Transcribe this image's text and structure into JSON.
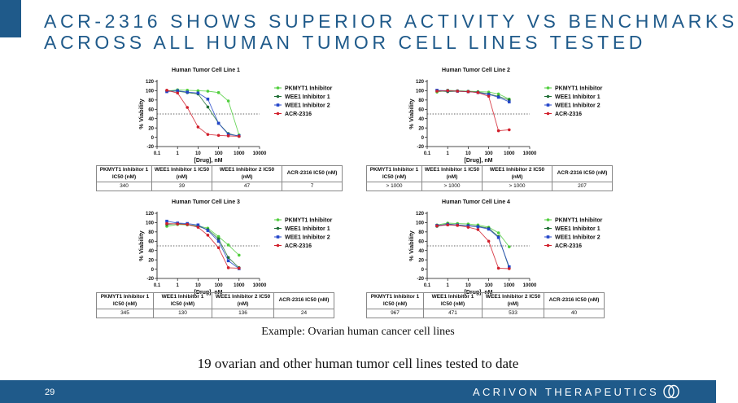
{
  "title_lines": [
    "ACR-2316 SHOWS SUPERIOR ACTIVITY VS BENCHMARKS",
    "ACROSS ALL HUMAN TUMOR CELL LINES TESTED"
  ],
  "example_caption": "Example: Ovarian human cancer cell lines",
  "footnote": "19 ovarian and other human tumor cell lines tested to date",
  "footer": {
    "page_number": "29",
    "brand": "ACRIVON THERAPEUTICS",
    "logo_icon": "interlocking-rings-logo-icon"
  },
  "colors": {
    "accent": "#1f5a8a",
    "PKMYT1 Inhibitor": "#4fce3c",
    "WEE1 Inhibitor 1": "#1f6e35",
    "WEE1 Inhibitor 2": "#2346c9",
    "ACR-2316": "#d11f2b",
    "reference_line": "#333333"
  },
  "chart_data": [
    {
      "type": "scatter",
      "title": "Human Tumor Cell Line 1",
      "xlabel": "[Drug], nM",
      "ylabel": "% Viability",
      "x_scale": "log",
      "x_ticks": [
        "0.1",
        "1",
        "10",
        "100",
        "1000",
        "10000"
      ],
      "y_ticks": [
        "-20",
        "0",
        "20",
        "40",
        "60",
        "80",
        "100",
        "120"
      ],
      "ylim": [
        -20,
        120
      ],
      "reference_line_y": 50,
      "legend_position": "right",
      "grid": false,
      "series": [
        {
          "name": "PKMYT1 Inhibitor",
          "x": [
            0.3,
            1,
            3,
            10,
            30,
            100,
            300,
            1000
          ],
          "y": [
            99,
            102,
            101,
            100,
            99,
            96,
            78,
            5
          ],
          "ic50": 340
        },
        {
          "name": "WEE1 Inhibitor 1",
          "x": [
            0.3,
            1,
            3,
            10,
            30,
            100,
            300,
            1000
          ],
          "y": [
            100,
            99,
            96,
            93,
            65,
            30,
            8,
            2
          ],
          "ic50": 39
        },
        {
          "name": "WEE1 Inhibitor 2",
          "x": [
            0.3,
            1,
            3,
            10,
            30,
            100,
            300,
            1000
          ],
          "y": [
            98,
            100,
            97,
            95,
            82,
            30,
            6,
            3
          ],
          "ic50": 47
        },
        {
          "name": "ACR-2316",
          "x": [
            0.3,
            1,
            3,
            10,
            30,
            100,
            300,
            1000
          ],
          "y": [
            101,
            95,
            64,
            22,
            6,
            4,
            3,
            2
          ],
          "ic50": 7
        }
      ],
      "table": {
        "headers": [
          "PKMYT1 Inhibitor 1 IC50 (nM)",
          "WEE1 Inhibitor 1 IC50 (nM)",
          "WEE1 Inhibitor 2 IC50 (nM)",
          "ACR-2316 IC50 (nM)"
        ],
        "values": [
          "340",
          "39",
          "47",
          "7"
        ]
      }
    },
    {
      "type": "scatter",
      "title": "Human Tumor Cell Line 2",
      "xlabel": "[Drug], nM",
      "ylabel": "% Viability",
      "x_scale": "log",
      "x_ticks": [
        "0.1",
        "1",
        "10",
        "100",
        "1000",
        "10000"
      ],
      "y_ticks": [
        "-20",
        "0",
        "20",
        "40",
        "60",
        "80",
        "100",
        "120"
      ],
      "ylim": [
        -20,
        120
      ],
      "reference_line_y": 50,
      "legend_position": "right",
      "grid": false,
      "series": [
        {
          "name": "PKMYT1 Inhibitor",
          "x": [
            0.3,
            1,
            3,
            10,
            30,
            100,
            300,
            1000
          ],
          "y": [
            97,
            101,
            100,
            99,
            98,
            97,
            93,
            82
          ],
          "ic50": "> 1000"
        },
        {
          "name": "WEE1 Inhibitor 1",
          "x": [
            0.3,
            1,
            3,
            10,
            30,
            100,
            300,
            1000
          ],
          "y": [
            100,
            98,
            99,
            98,
            97,
            93,
            88,
            80
          ],
          "ic50": "> 1000"
        },
        {
          "name": "WEE1 Inhibitor 2",
          "x": [
            0.3,
            1,
            3,
            10,
            30,
            100,
            300,
            1000
          ],
          "y": [
            101,
            100,
            99,
            98,
            96,
            92,
            86,
            76
          ],
          "ic50": "> 1000"
        },
        {
          "name": "ACR-2316",
          "x": [
            0.3,
            1,
            3,
            10,
            30,
            100,
            300,
            1000
          ],
          "y": [
            99,
            100,
            99,
            98,
            96,
            88,
            14,
            16
          ],
          "ic50": 207
        }
      ],
      "table": {
        "headers": [
          "PKMYT1 Inhibitor 1 IC50 (nM)",
          "WEE1 Inhibitor 1 IC50 (nM)",
          "WEE1 Inhibitor 2 IC50 (nM)",
          "ACR-2316 IC50 (nM)"
        ],
        "values": [
          "> 1000",
          "> 1000",
          "> 1000",
          "207"
        ]
      }
    },
    {
      "type": "scatter",
      "title": "Human Tumor Cell Line 3",
      "xlabel": "[Drug], nM",
      "ylabel": "% Viability",
      "x_scale": "log",
      "x_ticks": [
        "0.1",
        "1",
        "10",
        "100",
        "1000",
        "10000"
      ],
      "y_ticks": [
        "-20",
        "0",
        "20",
        "40",
        "60",
        "80",
        "100",
        "120"
      ],
      "ylim": [
        -20,
        120
      ],
      "reference_line_y": 50,
      "legend_position": "right",
      "grid": false,
      "series": [
        {
          "name": "PKMYT1 Inhibitor",
          "x": [
            0.3,
            1,
            3,
            10,
            30,
            100,
            300,
            1000
          ],
          "y": [
            92,
            96,
            95,
            93,
            88,
            70,
            52,
            30
          ],
          "ic50": 345
        },
        {
          "name": "WEE1 Inhibitor 1",
          "x": [
            0.3,
            1,
            3,
            10,
            30,
            100,
            300,
            1000
          ],
          "y": [
            96,
            98,
            96,
            92,
            85,
            65,
            25,
            3
          ],
          "ic50": 130
        },
        {
          "name": "WEE1 Inhibitor 2",
          "x": [
            0.3,
            1,
            3,
            10,
            30,
            100,
            300,
            1000
          ],
          "y": [
            103,
            99,
            98,
            95,
            83,
            60,
            18,
            1
          ],
          "ic50": 136
        },
        {
          "name": "ACR-2316",
          "x": [
            0.3,
            1,
            3,
            10,
            30,
            100,
            300,
            1000
          ],
          "y": [
            98,
            97,
            96,
            90,
            73,
            46,
            3,
            2
          ],
          "ic50": 24
        }
      ],
      "table": {
        "headers": [
          "PKMYT1 Inhibitor 1 IC50 (nM)",
          "WEE1 Inhibitor 1 IC50 (nM)",
          "WEE1 Inhibitor 2 IC50 (nM)",
          "ACR-2316 IC50 (nM)"
        ],
        "values": [
          "345",
          "130",
          "136",
          "24"
        ]
      }
    },
    {
      "type": "scatter",
      "title": "Human Tumor Cell Line 4",
      "xlabel": "[Drug], nM",
      "ylabel": "% Viability",
      "x_scale": "log",
      "x_ticks": [
        "0.1",
        "1",
        "10",
        "100",
        "1000",
        "10000"
      ],
      "y_ticks": [
        "-20",
        "0",
        "20",
        "40",
        "60",
        "80",
        "100",
        "120"
      ],
      "ylim": [
        -20,
        120
      ],
      "reference_line_y": 50,
      "legend_position": "right",
      "grid": false,
      "series": [
        {
          "name": "PKMYT1 Inhibitor",
          "x": [
            0.3,
            1,
            3,
            10,
            30,
            100,
            300,
            1000
          ],
          "y": [
            95,
            99,
            98,
            97,
            95,
            90,
            78,
            48
          ],
          "ic50": 967
        },
        {
          "name": "WEE1 Inhibitor 1",
          "x": [
            0.3,
            1,
            3,
            10,
            30,
            100,
            300,
            1000
          ],
          "y": [
            92,
            97,
            95,
            94,
            92,
            88,
            70,
            2
          ],
          "ic50": 471
        },
        {
          "name": "WEE1 Inhibitor 2",
          "x": [
            0.3,
            1,
            3,
            10,
            30,
            100,
            300,
            1000
          ],
          "y": [
            94,
            96,
            95,
            93,
            91,
            86,
            68,
            5
          ],
          "ic50": 533
        },
        {
          "name": "ACR-2316",
          "x": [
            0.3,
            1,
            3,
            10,
            30,
            100,
            300,
            1000
          ],
          "y": [
            93,
            95,
            94,
            90,
            85,
            60,
            2,
            1
          ],
          "ic50": 40
        }
      ],
      "table": {
        "headers": [
          "PKMYT1 Inhibitor 1 IC50 (nM)",
          "WEE1 Inhibitor 1 IC50 (nM)",
          "WEE1 Inhibitor 2 IC50 (nM)",
          "ACR-2316 IC50 (nM)"
        ],
        "values": [
          "967",
          "471",
          "533",
          "40"
        ]
      }
    }
  ]
}
